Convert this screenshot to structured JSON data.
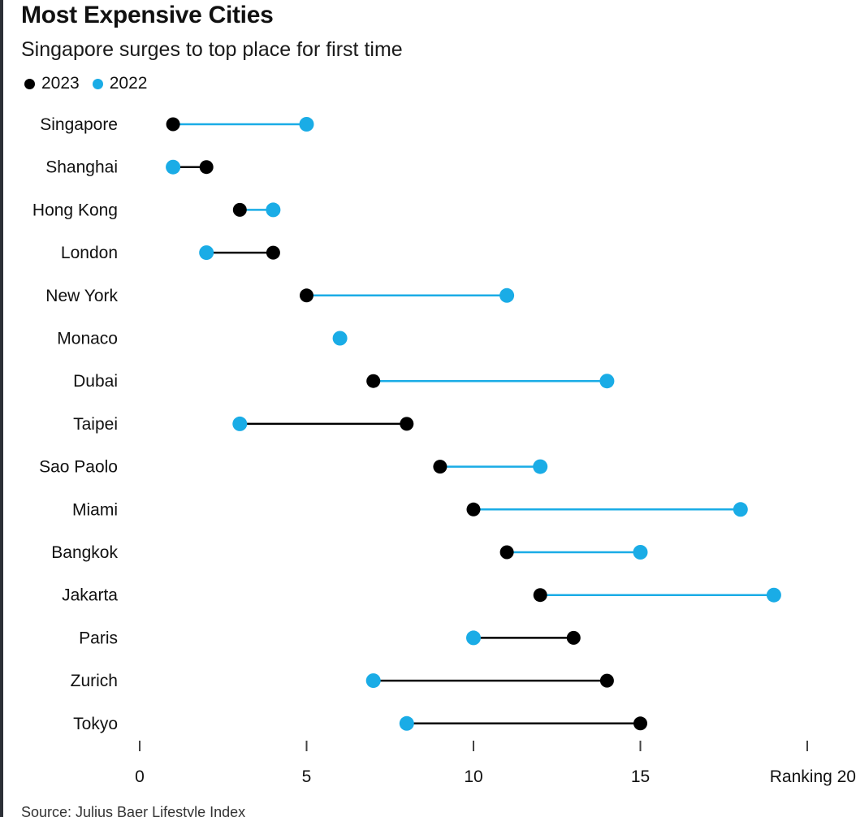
{
  "colors": {
    "y2023": "#000000",
    "y2022": "#1aace6",
    "axis_tick": "#444444",
    "text": "#111111"
  },
  "legend": {
    "y2023_label": "2023",
    "y2022_label": "2022"
  },
  "source": "Source: Julius Baer Lifestyle Index",
  "chart_data": {
    "type": "dumbbell",
    "title": "Most Expensive Cities",
    "subtitle": "Singapore surges to top place for first time",
    "xlabel": "Ranking",
    "xlim": [
      0,
      20
    ],
    "xticks": [
      0,
      5,
      10,
      15,
      20
    ],
    "categories": [
      "Singapore",
      "Shanghai",
      "Hong Kong",
      "London",
      "New York",
      "Monaco",
      "Dubai",
      "Taipei",
      "Sao Paolo",
      "Miami",
      "Bangkok",
      "Jakarta",
      "Paris",
      "Zurich",
      "Tokyo"
    ],
    "series": [
      {
        "name": "2023",
        "color": "#000000",
        "values": [
          1,
          2,
          3,
          4,
          5,
          6,
          7,
          8,
          9,
          10,
          11,
          12,
          13,
          14,
          15
        ]
      },
      {
        "name": "2022",
        "color": "#1aace6",
        "values": [
          5,
          1,
          4,
          2,
          11,
          6,
          14,
          3,
          12,
          18,
          15,
          19,
          10,
          7,
          8
        ]
      }
    ]
  }
}
